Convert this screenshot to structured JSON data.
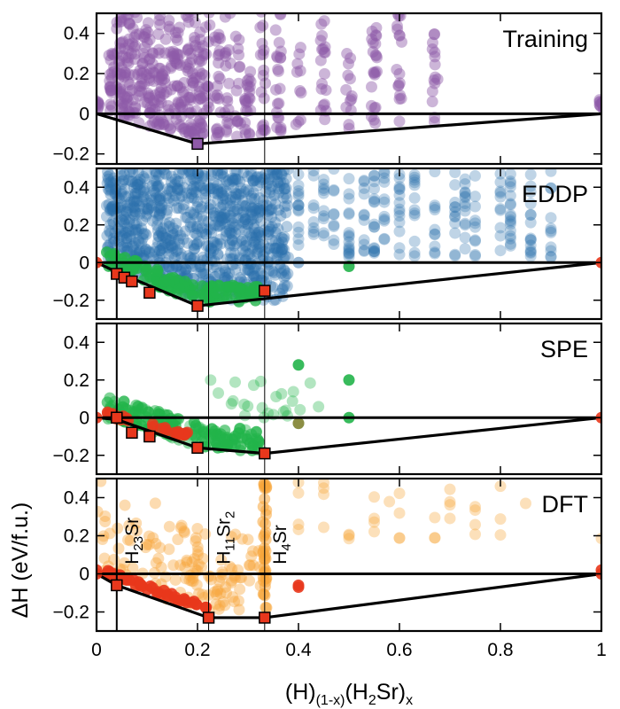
{
  "chart_data": {
    "type": "scatter",
    "title": "",
    "xlabel_main": "(H)",
    "xlabel_sub1": "(1-x)",
    "xlabel_mid": "(H",
    "xlabel_sub2": "2",
    "xlabel_end": "Sr)",
    "xlabel_sub3": "x",
    "ylabel": "ΔH (eV/f.u.)",
    "xlim": [
      0,
      1
    ],
    "xticks": [
      "0",
      "0.2",
      "0.4",
      "0.6",
      "0.8",
      "1"
    ],
    "xtick_values": [
      0,
      0.2,
      0.4,
      0.6,
      0.8,
      1
    ],
    "vlines_x": [
      0.04,
      0.222,
      0.333
    ],
    "colors": {
      "training": "#8e5aa8",
      "eddp": "#2c6fad",
      "spe": "#22b44a",
      "dft": "#f7a63a",
      "hull_marker": "#e8371c",
      "hull_line": "#000000"
    },
    "panels": [
      {
        "name": "Training",
        "ylim": [
          -0.25,
          0.5
        ],
        "yticks": [
          "0.4",
          "0.2",
          "0",
          "−0.2"
        ],
        "ytick_values": [
          0.4,
          0.2,
          0,
          -0.2
        ],
        "hull": [
          [
            0,
            0
          ],
          [
            0.2,
            -0.15
          ],
          [
            1,
            0
          ]
        ],
        "hull_markers": [
          [
            0.2,
            -0.15
          ]
        ],
        "clouds": [
          {
            "color": "training",
            "x": [
              0,
              0.03,
              0.045,
              0.05,
              0.06,
              0.07,
              0.08,
              0.09,
              0.1,
              0.11,
              0.12,
              0.13,
              0.14,
              0.15,
              0.16,
              0.17,
              0.18,
              0.19,
              0.2,
              0.21,
              0.22,
              0.24,
              0.26,
              0.28,
              0.3,
              0.33,
              0.36,
              0.4,
              0.45,
              0.5,
              0.55,
              0.6,
              0.67,
              1
            ],
            "y_top": [
              0.05,
              0.3,
              0.5,
              0.5,
              0.5,
              0.45,
              0.5,
              0.38,
              0.5,
              0.3,
              0.5,
              0.28,
              0.5,
              0.35,
              0.5,
              0.22,
              0.5,
              0.5,
              0.5,
              0.32,
              0.5,
              0.4,
              0.5,
              0.38,
              0.2,
              0.5,
              0.5,
              0.35,
              0.45,
              0.3,
              0.42,
              0.48,
              0.42,
              0.05
            ]
          }
        ]
      },
      {
        "name": "EDDP",
        "ylim": [
          -0.3,
          0.5
        ],
        "yticks": [
          "0.4",
          "0.2",
          "0",
          "−0.2"
        ],
        "ytick_values": [
          0.4,
          0.2,
          0,
          -0.2
        ],
        "hull": [
          [
            0,
            0
          ],
          [
            0.04,
            -0.05
          ],
          [
            0.2,
            -0.23
          ],
          [
            1,
            0
          ]
        ],
        "hull_markers": [
          [
            0.04,
            -0.06
          ],
          [
            0.055,
            -0.08
          ],
          [
            0.07,
            -0.1
          ],
          [
            0.105,
            -0.16
          ],
          [
            0.2,
            -0.23
          ],
          [
            0.333,
            -0.15
          ]
        ]
      },
      {
        "name": "SPE",
        "ylim": [
          -0.3,
          0.5
        ],
        "yticks": [
          "0.4",
          "0.2",
          "0",
          "−0.2"
        ],
        "ytick_values": [
          0.4,
          0.2,
          0,
          -0.2
        ],
        "hull": [
          [
            0,
            0
          ],
          [
            0.04,
            -0.01
          ],
          [
            0.2,
            -0.16
          ],
          [
            0.333,
            -0.19
          ],
          [
            1,
            0
          ]
        ],
        "hull_markers": [
          [
            0.04,
            0
          ],
          [
            0.07,
            -0.08
          ],
          [
            0.105,
            -0.1
          ],
          [
            0.2,
            -0.16
          ],
          [
            0.333,
            -0.19
          ]
        ],
        "points_extra": [
          [
            0.5,
            0.2
          ],
          [
            0.4,
            0.28
          ],
          [
            0.4,
            -0.03
          ],
          [
            0.5,
            0.0
          ]
        ]
      },
      {
        "name": "DFT",
        "ylim": [
          -0.3,
          0.5
        ],
        "yticks": [
          "0.4",
          "0.2",
          "0",
          "−0.2"
        ],
        "ytick_values": [
          0.4,
          0.2,
          0,
          -0.2
        ],
        "hull": [
          [
            0,
            0
          ],
          [
            0.04,
            -0.06
          ],
          [
            0.222,
            -0.23
          ],
          [
            0.333,
            -0.23
          ],
          [
            1,
            0
          ]
        ],
        "hull_markers": [
          [
            0.04,
            -0.06
          ],
          [
            0.222,
            -0.23
          ],
          [
            0.333,
            -0.23
          ]
        ],
        "compound_labels": [
          {
            "base": "H",
            "sub": "23",
            "rest": "Sr",
            "x": 0.04
          },
          {
            "base": "H",
            "sub": "11",
            "rest": "Sr",
            "sub2": "2",
            "x": 0.222
          },
          {
            "base": "H",
            "sub": "4",
            "rest": "Sr",
            "x": 0.333
          }
        ]
      }
    ]
  }
}
